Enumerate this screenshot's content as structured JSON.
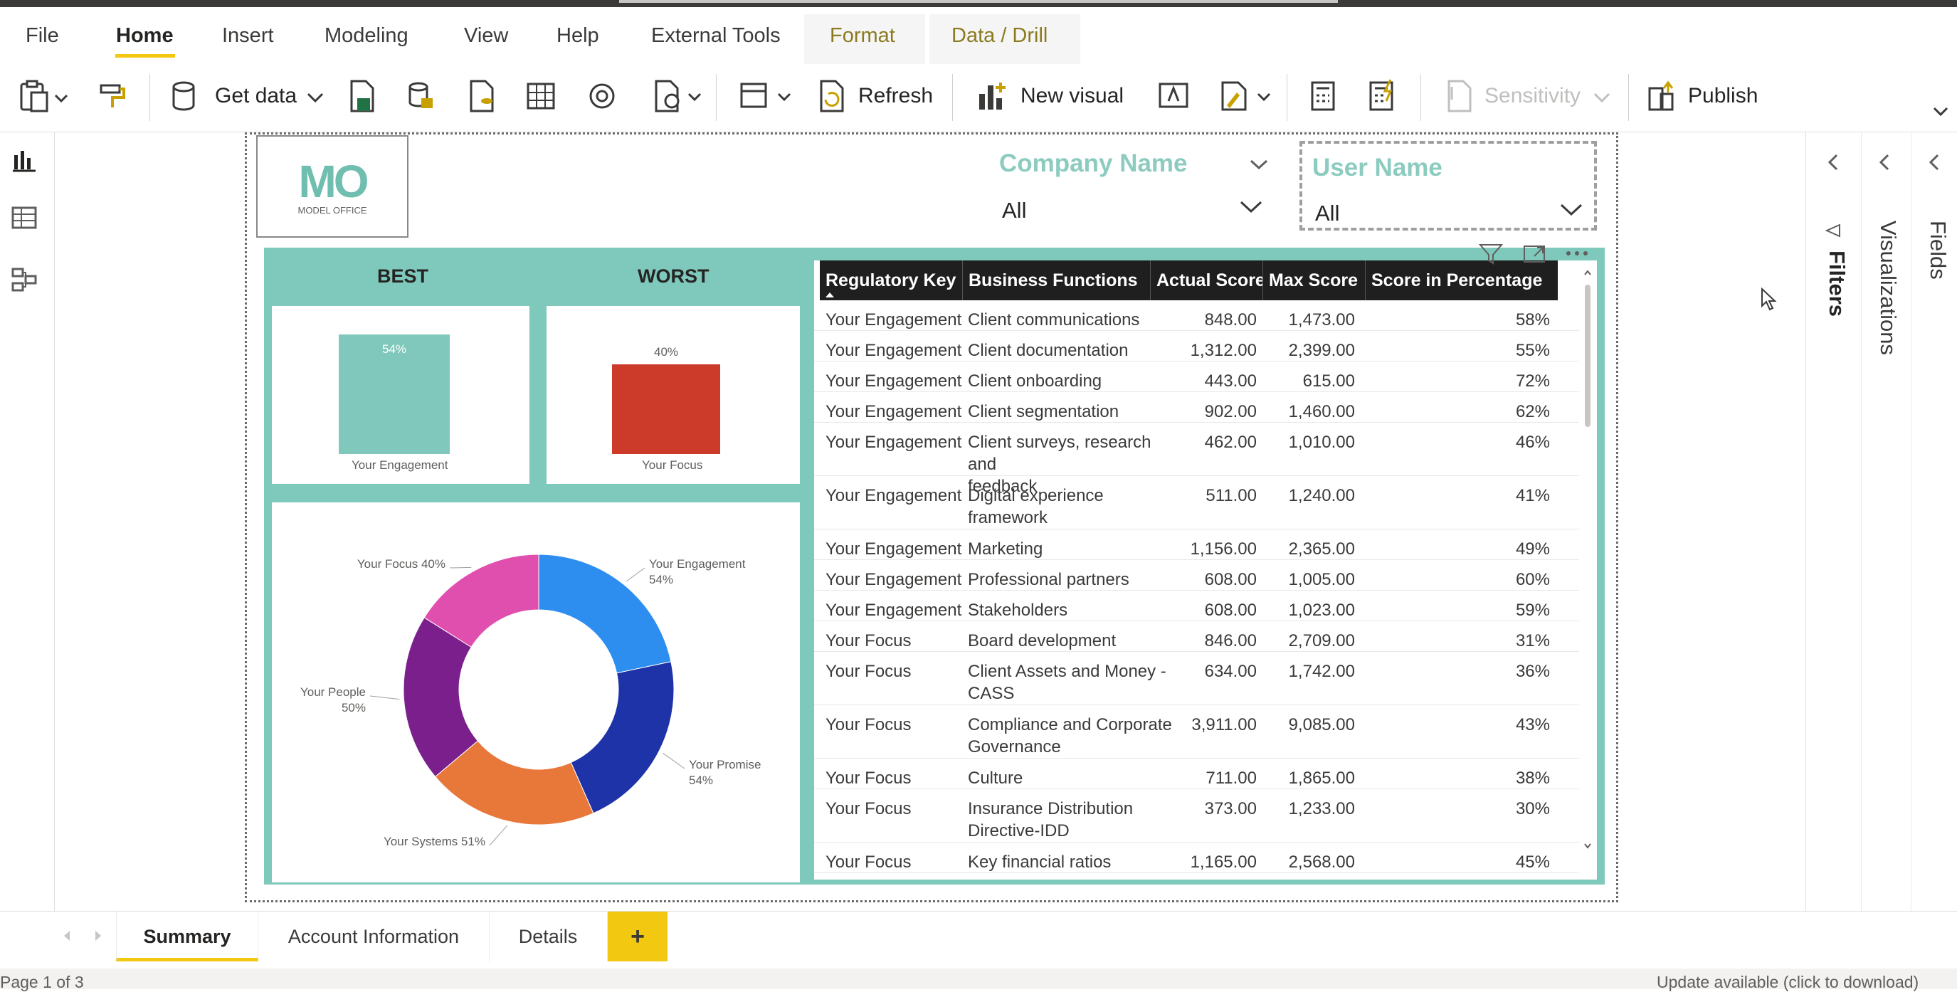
{
  "menu": {
    "items": [
      {
        "label": "File",
        "active": false
      },
      {
        "label": "Home",
        "active": true
      },
      {
        "label": "Insert",
        "active": false
      },
      {
        "label": "Modeling",
        "active": false
      },
      {
        "label": "View",
        "active": false
      },
      {
        "label": "Help",
        "active": false
      },
      {
        "label": "External Tools",
        "active": false
      }
    ],
    "context_tabs": [
      "Format",
      "Data / Drill"
    ]
  },
  "ribbon": {
    "get_data": "Get data",
    "refresh": "Refresh",
    "new_visual": "New visual",
    "sensitivity": "Sensitivity",
    "publish": "Publish"
  },
  "logo": {
    "mark": "MO",
    "text": "MODEL OFFICE"
  },
  "slicers": {
    "company": {
      "title": "Company Name",
      "value": "All"
    },
    "user": {
      "title": "User Name",
      "value": "All"
    }
  },
  "best_worst": {
    "best_label": "BEST",
    "worst_label": "WORST",
    "best": {
      "name": "Your Engagement",
      "value": 54,
      "label": "54%",
      "color": "#80c8bc"
    },
    "worst": {
      "name": "Your Focus",
      "value": 40,
      "label": "40%",
      "color": "#cc3a2a"
    }
  },
  "chart_data": {
    "type": "pie",
    "donut": true,
    "slices": [
      {
        "name": "Your Engagement",
        "value": 54,
        "label": "Your Engagement\n54%",
        "color": "#2e8ef0"
      },
      {
        "name": "Your Promise",
        "value": 54,
        "label": "Your Promise\n54%",
        "color": "#1f33a8"
      },
      {
        "name": "Your Systems",
        "value": 51,
        "label": "Your Systems 51%",
        "color": "#e8773a"
      },
      {
        "name": "Your People",
        "value": 50,
        "label": "Your People\n50%",
        "color": "#7a1f8c"
      },
      {
        "name": "Your Focus",
        "value": 40,
        "label": "Your Focus 40%",
        "color": "#e04fae"
      }
    ]
  },
  "table": {
    "columns": [
      "Regulatory Key",
      "Business Functions",
      "Actual Score",
      "Max Score",
      "Score in Percentage"
    ],
    "rows": [
      [
        "Your Engagement",
        "Client communications",
        "848.00",
        "1,473.00",
        "58%"
      ],
      [
        "Your Engagement",
        "Client documentation",
        "1,312.00",
        "2,399.00",
        "55%"
      ],
      [
        "Your Engagement",
        "Client onboarding",
        "443.00",
        "615.00",
        "72%"
      ],
      [
        "Your Engagement",
        "Client segmentation",
        "902.00",
        "1,460.00",
        "62%"
      ],
      [
        "Your Engagement",
        "Client surveys, research and\nfeedback",
        "462.00",
        "1,010.00",
        "46%"
      ],
      [
        "Your Engagement",
        "Digital experience\nframework",
        "511.00",
        "1,240.00",
        "41%"
      ],
      [
        "Your Engagement",
        "Marketing",
        "1,156.00",
        "2,365.00",
        "49%"
      ],
      [
        "Your Engagement",
        "Professional partners",
        "608.00",
        "1,005.00",
        "60%"
      ],
      [
        "Your Engagement",
        "Stakeholders",
        "608.00",
        "1,023.00",
        "59%"
      ],
      [
        "Your Focus",
        "Board development",
        "846.00",
        "2,709.00",
        "31%"
      ],
      [
        "Your Focus",
        "Client Assets and Money -\nCASS",
        "634.00",
        "1,742.00",
        "36%"
      ],
      [
        "Your Focus",
        "Compliance and Corporate\nGovernance",
        "3,911.00",
        "9,085.00",
        "43%"
      ],
      [
        "Your Focus",
        "Culture",
        "711.00",
        "1,865.00",
        "38%"
      ],
      [
        "Your Focus",
        "Insurance Distribution\nDirective-IDD",
        "373.00",
        "1,233.00",
        "30%"
      ],
      [
        "Your Focus",
        "Key financial ratios",
        "1,165.00",
        "2,568.00",
        "45%"
      ]
    ]
  },
  "panes": {
    "filters": "Filters",
    "visualizations": "Visualizations",
    "fields": "Fields"
  },
  "page_tabs": [
    "Summary",
    "Account Information",
    "Details"
  ],
  "add_tab": "+",
  "status": {
    "page": "Page 1 of 3",
    "update": "Update available (click to download)"
  }
}
